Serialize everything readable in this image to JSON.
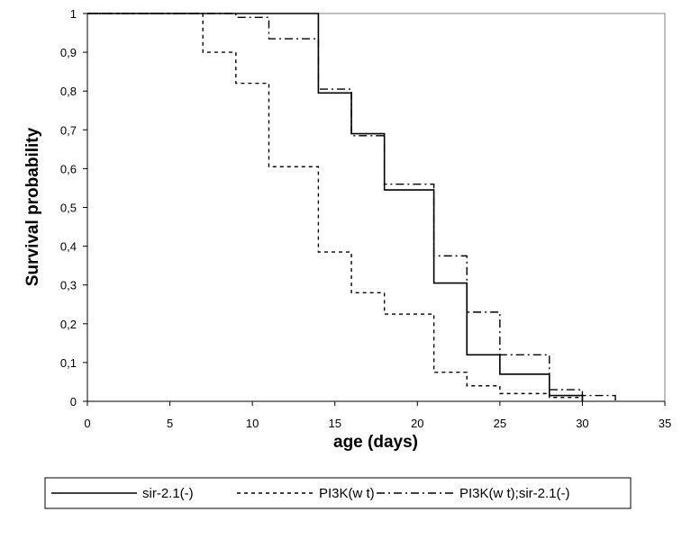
{
  "chart_data": {
    "type": "line",
    "title": "",
    "xlabel": "age (days)",
    "ylabel": "Survival probability",
    "xlim": [
      0,
      35
    ],
    "ylim": [
      0,
      1
    ],
    "x_ticks": [
      "0",
      "5",
      "10",
      "15",
      "20",
      "25",
      "30",
      "35"
    ],
    "y_ticks": [
      "0",
      "0,1",
      "0,2",
      "0,3",
      "0,4",
      "0,5",
      "0,6",
      "0,7",
      "0,8",
      "0,9",
      "1"
    ],
    "grid": false,
    "legend_position": "bottom",
    "series": [
      {
        "name": "sir-2.1(-)",
        "style": "solid",
        "x": [
          0,
          14,
          16,
          18,
          21,
          23,
          25,
          28,
          30
        ],
        "y": [
          1,
          0.795,
          0.69,
          0.545,
          0.305,
          0.12,
          0.07,
          0.015,
          0
        ]
      },
      {
        "name": "PI3K(w t)",
        "style": "dotted",
        "x": [
          0,
          7,
          9,
          11,
          14,
          16,
          18,
          21,
          23,
          25,
          28,
          30
        ],
        "y": [
          1,
          0.9,
          0.82,
          0.605,
          0.385,
          0.28,
          0.225,
          0.075,
          0.04,
          0.02,
          0.01,
          0
        ]
      },
      {
        "name": "PI3K(w t);sir-2.1(-)",
        "style": "dashdot",
        "x": [
          0,
          9,
          11,
          14,
          16,
          18,
          21,
          23,
          25,
          28,
          30,
          32
        ],
        "y": [
          1,
          0.99,
          0.935,
          0.805,
          0.685,
          0.56,
          0.375,
          0.23,
          0.12,
          0.03,
          0.015,
          0
        ]
      }
    ]
  }
}
